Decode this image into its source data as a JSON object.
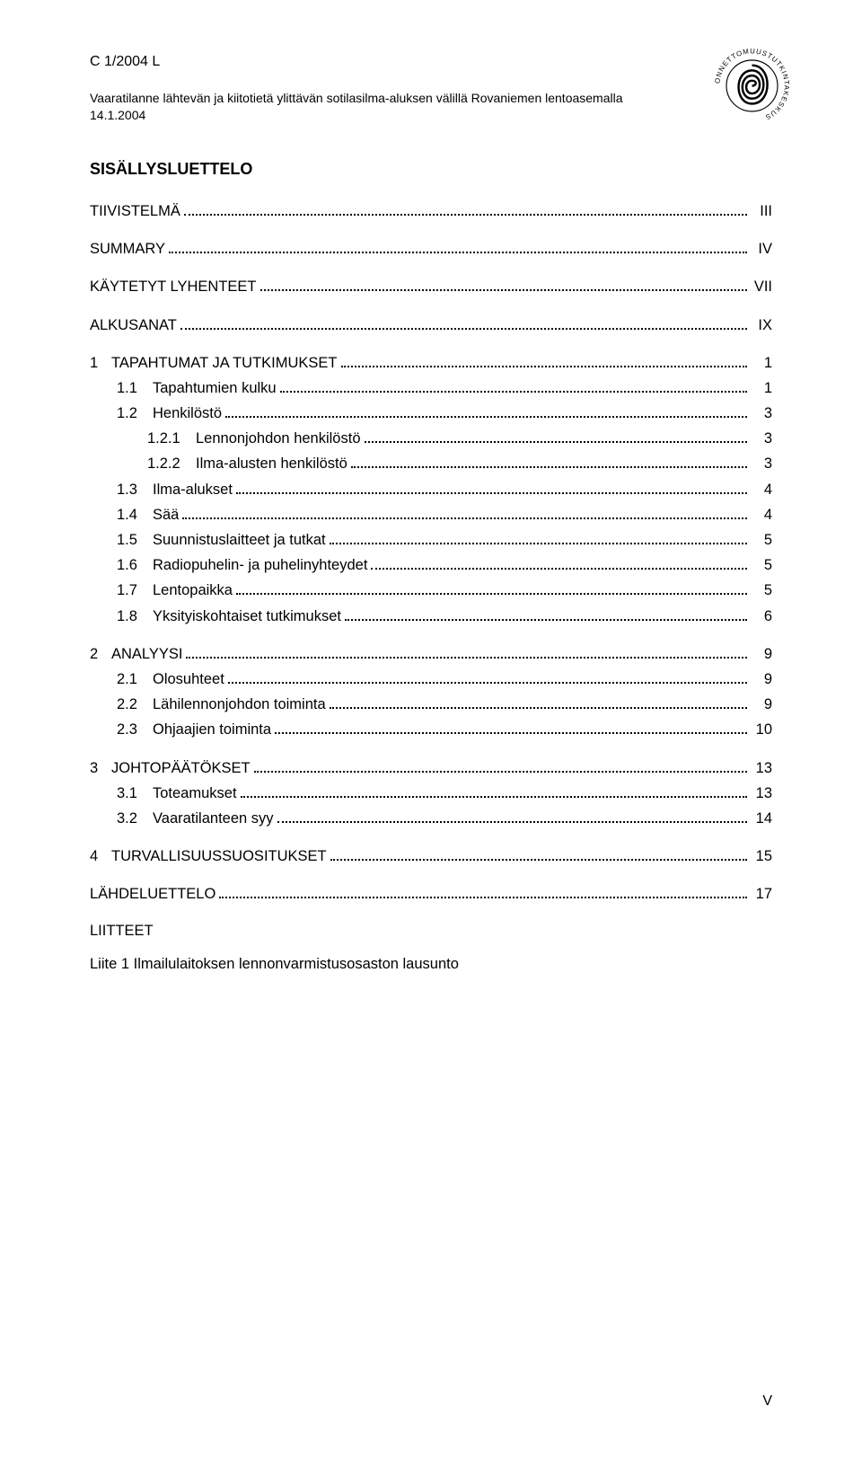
{
  "header": {
    "doc_id": "C 1/2004 L",
    "subtitle_line1": "Vaaratilanne lähtevän ja kiitotietä ylittävän sotilasilma-aluksen välillä Rovaniemen lentoasemalla",
    "subtitle_line2": "14.1.2004"
  },
  "heading": "SISÄLLYSLUETTELO",
  "toc": [
    {
      "num": "",
      "label": "TIIVISTELMÄ",
      "page": "III",
      "indent": 0,
      "gap_after": true
    },
    {
      "num": "",
      "label": "SUMMARY",
      "page": "IV",
      "indent": 0,
      "gap_after": true
    },
    {
      "num": "",
      "label": "KÄYTETYT LYHENTEET",
      "page": "VII",
      "indent": 0,
      "gap_after": true
    },
    {
      "num": "",
      "label": "ALKUSANAT",
      "page": "IX",
      "indent": 0,
      "gap_after": true
    },
    {
      "num": "1",
      "label": "TAPAHTUMAT JA TUTKIMUKSET",
      "page": "1",
      "indent": 0,
      "gap_after": false
    },
    {
      "num": "1.1",
      "label": "Tapahtumien kulku",
      "page": "1",
      "indent": 1,
      "gap_after": false
    },
    {
      "num": "1.2",
      "label": "Henkilöstö",
      "page": "3",
      "indent": 1,
      "gap_after": false
    },
    {
      "num": "1.2.1",
      "label": "Lennonjohdon henkilöstö",
      "page": "3",
      "indent": 2,
      "gap_after": false
    },
    {
      "num": "1.2.2",
      "label": "Ilma-alusten henkilöstö",
      "page": "3",
      "indent": 2,
      "gap_after": false
    },
    {
      "num": "1.3",
      "label": "Ilma-alukset",
      "page": "4",
      "indent": 1,
      "gap_after": false
    },
    {
      "num": "1.4",
      "label": "Sää",
      "page": "4",
      "indent": 1,
      "gap_after": false
    },
    {
      "num": "1.5",
      "label": "Suunnistuslaitteet ja tutkat",
      "page": "5",
      "indent": 1,
      "gap_after": false
    },
    {
      "num": "1.6",
      "label": "Radiopuhelin- ja puhelinyhteydet",
      "page": "5",
      "indent": 1,
      "gap_after": false
    },
    {
      "num": "1.7",
      "label": "Lentopaikka",
      "page": "5",
      "indent": 1,
      "gap_after": false
    },
    {
      "num": "1.8",
      "label": "Yksityiskohtaiset tutkimukset",
      "page": "6",
      "indent": 1,
      "gap_after": true
    },
    {
      "num": "2",
      "label": "ANALYYSI",
      "page": "9",
      "indent": 0,
      "gap_after": false
    },
    {
      "num": "2.1",
      "label": "Olosuhteet",
      "page": "9",
      "indent": 1,
      "gap_after": false
    },
    {
      "num": "2.2",
      "label": "Lähilennonjohdon toiminta",
      "page": "9",
      "indent": 1,
      "gap_after": false
    },
    {
      "num": "2.3",
      "label": "Ohjaajien toiminta",
      "page": "10",
      "indent": 1,
      "gap_after": true
    },
    {
      "num": "3",
      "label": "JOHTOPÄÄTÖKSET",
      "page": "13",
      "indent": 0,
      "gap_after": false
    },
    {
      "num": "3.1",
      "label": "Toteamukset",
      "page": "13",
      "indent": 1,
      "gap_after": false
    },
    {
      "num": "3.2",
      "label": "Vaaratilanteen syy",
      "page": "14",
      "indent": 1,
      "gap_after": true
    },
    {
      "num": "4",
      "label": "TURVALLISUUSSUOSITUKSET",
      "page": "15",
      "indent": 0,
      "gap_after": true
    },
    {
      "num": "",
      "label": "LÄHDELUETTELO",
      "page": "17",
      "indent": 0,
      "gap_after": true
    }
  ],
  "appendix_heading": "LIITTEET",
  "appendix_line": "Liite 1 Ilmailulaitoksen lennonvarmistusosaston lausunto",
  "page_number": "V",
  "logo": {
    "circle_stroke": "#000000",
    "spiral_stroke": "#000000",
    "top_text": "ONNETTOMUUS",
    "bottom_text": "TUTKINTAKESKUS"
  }
}
